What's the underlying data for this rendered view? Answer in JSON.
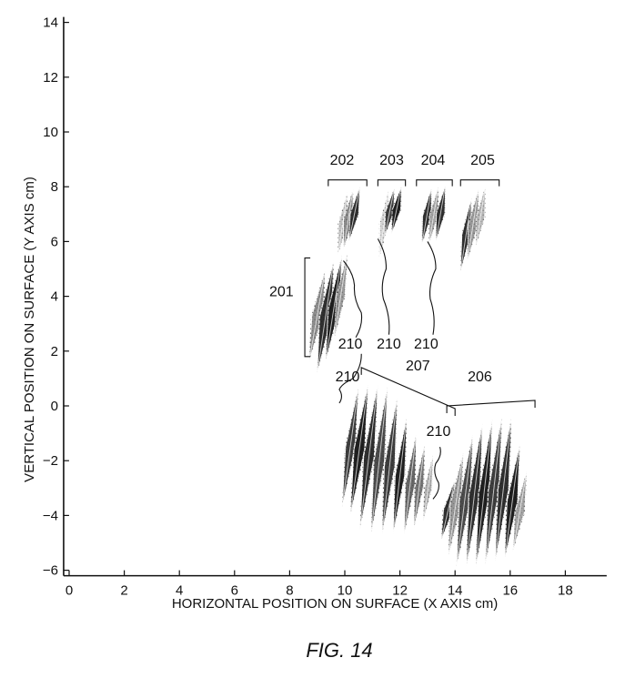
{
  "figure": {
    "caption": "FIG. 14"
  },
  "chart_data": {
    "type": "scatter",
    "xlabel": "HORIZONTAL POSITION ON SURFACE (X AXIS cm)",
    "ylabel": "VERTICAL POSITION ON SURFACE (Y AXIS cm)",
    "xlim": [
      -0.2,
      19.5
    ],
    "ylim": [
      -6.2,
      14.2
    ],
    "x_ticks": [
      0,
      2,
      4,
      6,
      8,
      10,
      12,
      14,
      16,
      18
    ],
    "y_ticks": [
      -6,
      -4,
      -2,
      0,
      2,
      4,
      6,
      8,
      10,
      12,
      14
    ],
    "x_tick_labels": [
      "0",
      "2",
      "4",
      "6",
      "8",
      "10",
      "12",
      "14",
      "16",
      "18"
    ],
    "y_tick_labels": [
      "-6",
      "-4",
      "-2",
      "0",
      "2",
      "4",
      "6",
      "8",
      "10",
      "12",
      "14"
    ],
    "grid": false,
    "regions": [
      {
        "label": "201",
        "bracket": {
          "x": 8.55,
          "y_range": [
            1.8,
            5.4
          ]
        },
        "label_pos": [
          7.7,
          4.0
        ],
        "strokes": [
          {
            "x0": 8.7,
            "y0": 1.6,
            "x1": 9.3,
            "y1": 5.0,
            "w": 0.45,
            "dark": 0.6
          },
          {
            "x0": 9.0,
            "y0": 1.2,
            "x1": 9.6,
            "y1": 5.3,
            "w": 0.5,
            "dark": 0.95
          },
          {
            "x0": 9.3,
            "y0": 1.6,
            "x1": 9.9,
            "y1": 5.5,
            "w": 0.45,
            "dark": 1.0
          },
          {
            "x0": 9.6,
            "y0": 2.4,
            "x1": 10.1,
            "y1": 5.6,
            "w": 0.35,
            "dark": 0.55
          }
        ]
      },
      {
        "label": "202",
        "bracket": {
          "x_range": [
            9.4,
            10.8
          ],
          "y": 8.25
        },
        "label_pos": [
          9.9,
          8.8
        ],
        "strokes": [
          {
            "x0": 9.75,
            "y0": 5.5,
            "x1": 10.1,
            "y1": 7.8,
            "w": 0.35,
            "dark": 0.35
          },
          {
            "x0": 9.95,
            "y0": 5.7,
            "x1": 10.3,
            "y1": 7.9,
            "w": 0.4,
            "dark": 0.6
          },
          {
            "x0": 10.15,
            "y0": 6.0,
            "x1": 10.55,
            "y1": 8.0,
            "w": 0.35,
            "dark": 0.95
          }
        ]
      },
      {
        "label": "203",
        "bracket": {
          "x_range": [
            11.2,
            12.2
          ],
          "y": 8.25
        },
        "label_pos": [
          11.7,
          8.8
        ],
        "strokes": [
          {
            "x0": 11.25,
            "y0": 5.4,
            "x1": 11.6,
            "y1": 7.9,
            "w": 0.35,
            "dark": 0.25
          },
          {
            "x0": 11.45,
            "y0": 6.2,
            "x1": 11.8,
            "y1": 7.95,
            "w": 0.35,
            "dark": 0.9
          },
          {
            "x0": 11.7,
            "y0": 6.3,
            "x1": 12.05,
            "y1": 8.0,
            "w": 0.35,
            "dark": 1.0
          }
        ]
      },
      {
        "label": "204",
        "bracket": {
          "x_range": [
            12.6,
            13.9
          ],
          "y": 8.25
        },
        "label_pos": [
          13.2,
          8.8
        ],
        "strokes": [
          {
            "x0": 12.8,
            "y0": 5.9,
            "x1": 13.15,
            "y1": 7.95,
            "w": 0.35,
            "dark": 0.95
          },
          {
            "x0": 13.05,
            "y0": 5.9,
            "x1": 13.4,
            "y1": 8.0,
            "w": 0.35,
            "dark": 0.5
          },
          {
            "x0": 13.3,
            "y0": 6.0,
            "x1": 13.65,
            "y1": 8.05,
            "w": 0.35,
            "dark": 0.95
          }
        ]
      },
      {
        "label": "205",
        "bracket": {
          "x_range": [
            14.2,
            15.6
          ],
          "y": 8.25
        },
        "label_pos": [
          15.0,
          8.8
        ],
        "strokes": [
          {
            "x0": 14.2,
            "y0": 4.9,
            "x1": 14.6,
            "y1": 7.6,
            "w": 0.35,
            "dark": 0.95
          },
          {
            "x0": 14.45,
            "y0": 5.3,
            "x1": 14.85,
            "y1": 7.9,
            "w": 0.4,
            "dark": 0.55
          },
          {
            "x0": 14.75,
            "y0": 5.8,
            "x1": 15.1,
            "y1": 8.0,
            "w": 0.35,
            "dark": 0.4
          }
        ]
      },
      {
        "label": "207",
        "bracket": {
          "x0": 10.6,
          "y0": 1.4,
          "x1": 14.0,
          "y1": -0.1
        },
        "label_pos": [
          12.65,
          1.3
        ],
        "strokes": [
          {
            "x0": 9.9,
            "y0": -3.7,
            "x1": 10.5,
            "y1": 0.7,
            "w": 0.4,
            "dark": 0.9
          },
          {
            "x0": 10.2,
            "y0": -4.0,
            "x1": 10.85,
            "y1": 0.8,
            "w": 0.45,
            "dark": 1.0
          },
          {
            "x0": 10.55,
            "y0": -4.5,
            "x1": 11.2,
            "y1": 0.8,
            "w": 0.45,
            "dark": 0.95
          },
          {
            "x0": 10.95,
            "y0": -4.7,
            "x1": 11.55,
            "y1": 0.7,
            "w": 0.45,
            "dark": 0.85
          },
          {
            "x0": 11.35,
            "y0": -4.7,
            "x1": 11.9,
            "y1": 0.3,
            "w": 0.45,
            "dark": 0.9
          },
          {
            "x0": 11.75,
            "y0": -4.7,
            "x1": 12.25,
            "y1": -0.4,
            "w": 0.4,
            "dark": 1.0
          },
          {
            "x0": 12.15,
            "y0": -4.7,
            "x1": 12.6,
            "y1": -1.0,
            "w": 0.4,
            "dark": 0.75
          },
          {
            "x0": 12.5,
            "y0": -4.5,
            "x1": 12.9,
            "y1": -1.4,
            "w": 0.35,
            "dark": 0.7
          },
          {
            "x0": 12.85,
            "y0": -4.2,
            "x1": 13.2,
            "y1": -1.8,
            "w": 0.3,
            "dark": 0.45
          }
        ]
      },
      {
        "label": "206",
        "bracket": {
          "x0": 13.7,
          "y0": 0.0,
          "x1": 16.9,
          "y1": 0.2
        },
        "label_pos": [
          14.9,
          0.9
        ],
        "strokes": [
          {
            "x0": 13.5,
            "y0": -4.9,
            "x1": 14.0,
            "y1": -2.7,
            "w": 0.4,
            "dark": 0.95
          },
          {
            "x0": 13.75,
            "y0": -5.5,
            "x1": 14.3,
            "y1": -1.7,
            "w": 0.45,
            "dark": 0.55
          },
          {
            "x0": 14.05,
            "y0": -5.9,
            "x1": 14.65,
            "y1": -1.0,
            "w": 0.45,
            "dark": 0.85
          },
          {
            "x0": 14.4,
            "y0": -5.9,
            "x1": 15.0,
            "y1": -0.6,
            "w": 0.45,
            "dark": 0.95
          },
          {
            "x0": 14.75,
            "y0": -5.9,
            "x1": 15.35,
            "y1": -0.5,
            "w": 0.45,
            "dark": 1.0
          },
          {
            "x0": 15.1,
            "y0": -5.8,
            "x1": 15.7,
            "y1": -0.4,
            "w": 0.45,
            "dark": 0.9
          },
          {
            "x0": 15.45,
            "y0": -5.7,
            "x1": 16.05,
            "y1": -0.4,
            "w": 0.45,
            "dark": 0.95
          },
          {
            "x0": 15.8,
            "y0": -5.6,
            "x1": 16.35,
            "y1": -1.4,
            "w": 0.45,
            "dark": 1.0
          },
          {
            "x0": 16.1,
            "y0": -5.3,
            "x1": 16.6,
            "y1": -2.4,
            "w": 0.4,
            "dark": 0.5
          }
        ]
      }
    ],
    "annotations": [
      {
        "label": "210",
        "pos": [
          10.2,
          2.1
        ],
        "leader": [
          [
            9.95,
            5.3
          ],
          [
            10.35,
            4.4
          ],
          [
            10.6,
            3.4
          ],
          [
            10.4,
            2.5
          ]
        ]
      },
      {
        "label": "210",
        "pos": [
          11.6,
          2.1
        ],
        "leader": [
          [
            11.2,
            6.1
          ],
          [
            11.5,
            5.0
          ],
          [
            11.4,
            3.9
          ],
          [
            11.6,
            2.6
          ]
        ]
      },
      {
        "label": "210",
        "pos": [
          12.95,
          2.1
        ],
        "leader": [
          [
            13.0,
            6.0
          ],
          [
            13.3,
            5.0
          ],
          [
            13.1,
            3.9
          ],
          [
            13.2,
            2.6
          ]
        ]
      },
      {
        "label": "210",
        "pos": [
          10.1,
          0.9
        ],
        "leader": [
          [
            10.6,
            1.9
          ],
          [
            10.3,
            1.0
          ],
          [
            9.8,
            0.6
          ],
          [
            9.8,
            0.1
          ]
        ]
      },
      {
        "label": "210",
        "pos": [
          13.4,
          -1.1
        ],
        "leader": [
          [
            13.45,
            -1.5
          ],
          [
            13.3,
            -2.1
          ],
          [
            13.4,
            -2.8
          ],
          [
            13.2,
            -3.4
          ]
        ]
      }
    ]
  }
}
